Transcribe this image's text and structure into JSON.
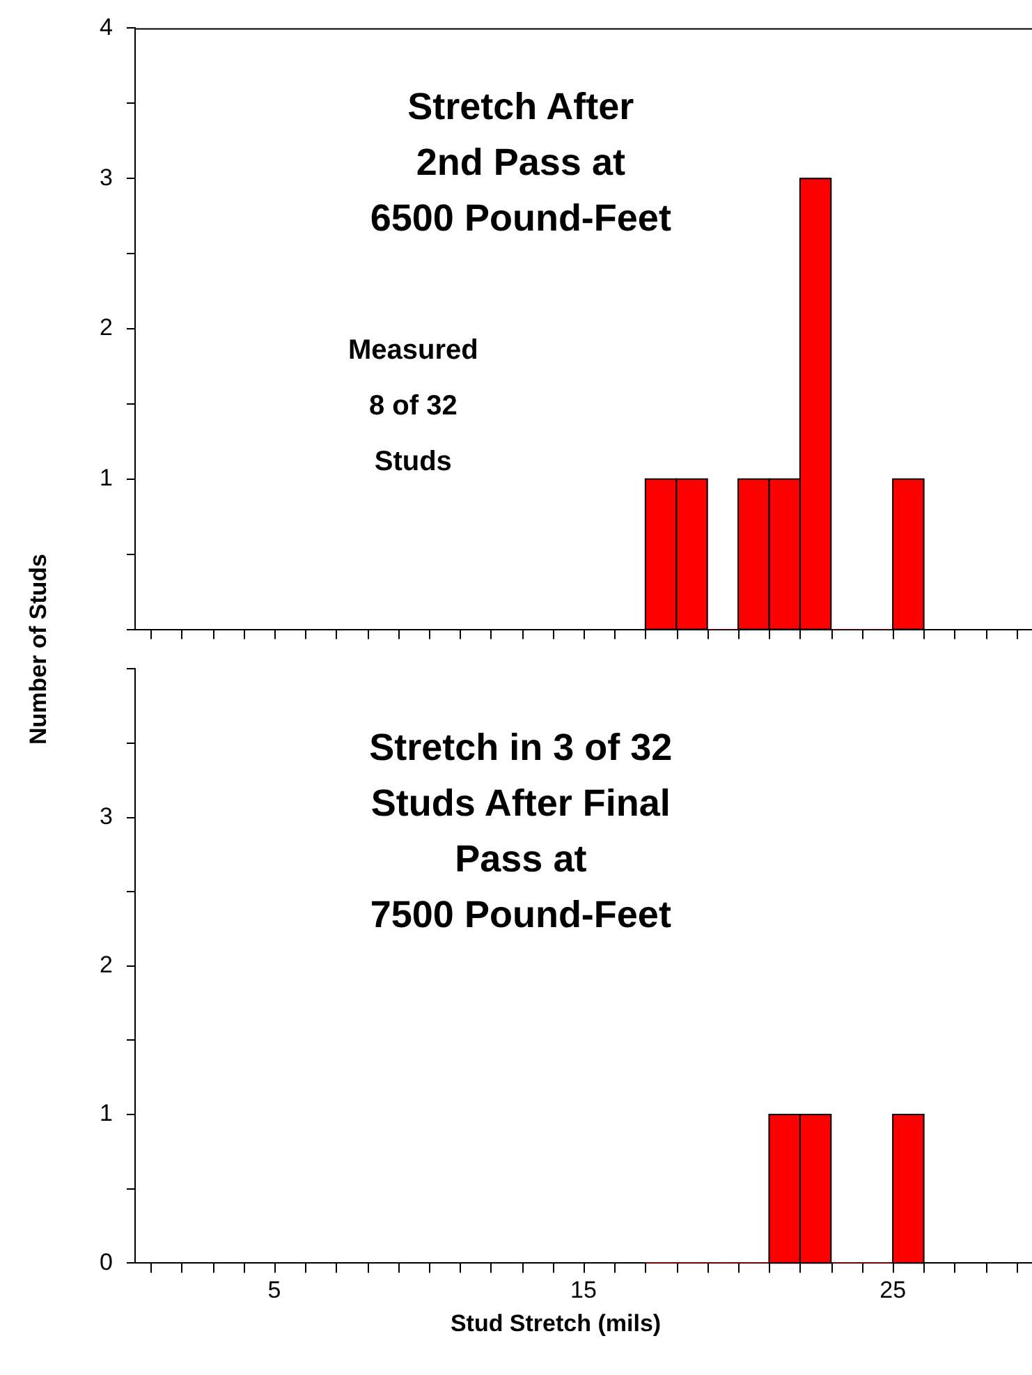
{
  "chart_data": [
    {
      "type": "histogram",
      "title": "Stretch After\n2nd Pass at\n6500 Pound-Feet",
      "ylabel": "Number of Studs",
      "annotations": [
        "Measured\n8 of 32\nStuds"
      ],
      "bins": [
        17,
        18,
        19,
        20,
        21,
        22,
        23,
        24,
        25,
        26
      ],
      "values": [
        1,
        1,
        0,
        1,
        1,
        3,
        0,
        0,
        1
      ],
      "color": "#ff0000",
      "xlim": [
        0.5,
        29.5
      ],
      "xticks": [
        {
          "value": 1,
          "label": null
        },
        {
          "value": 2,
          "label": null
        },
        {
          "value": 3,
          "label": null
        },
        {
          "value": 4,
          "label": null
        },
        5,
        {
          "value": 6,
          "label": null
        },
        {
          "value": 7,
          "label": null
        },
        {
          "value": 8,
          "label": null
        },
        {
          "value": 9,
          "label": null
        },
        {
          "value": 10,
          "label": null
        },
        {
          "value": 11,
          "label": null
        },
        {
          "value": 12,
          "label": null
        },
        {
          "value": 13,
          "label": null
        },
        {
          "value": 14,
          "label": null
        },
        15,
        {
          "value": 16,
          "label": null
        },
        {
          "value": 17,
          "label": null
        },
        {
          "value": 18,
          "label": null
        },
        {
          "value": 19,
          "label": null
        },
        {
          "value": 20,
          "label": null
        },
        {
          "value": 21,
          "label": null
        },
        {
          "value": 22,
          "label": null
        },
        {
          "value": 23,
          "label": null
        },
        {
          "value": 24,
          "label": null
        },
        25,
        {
          "value": 26,
          "label": null
        },
        {
          "value": 27,
          "label": null
        },
        {
          "value": 28,
          "label": null
        },
        {
          "value": 29,
          "label": null
        }
      ],
      "ylim": [
        0,
        4
      ],
      "yticks": [
        {
          "value": 0,
          "label": null
        },
        {
          "value": 0.5,
          "label": null
        },
        1,
        {
          "value": 1.5,
          "label": null
        },
        2,
        {
          "value": 2.5,
          "label": null
        },
        3,
        {
          "value": 3.5,
          "label": null
        },
        4
      ],
      "tick_labels": "y",
      "grid": false,
      "legend": false
    },
    {
      "type": "histogram",
      "title": "Stretch in 3 of 32\nStuds After Final\nPass at\n7500 Pound-Feet",
      "xlabel": "Stud Stretch (mils)",
      "bins": [
        17,
        18,
        19,
        20,
        21,
        22,
        23,
        24,
        25,
        26
      ],
      "values": [
        0,
        0,
        0,
        0,
        1,
        1,
        0,
        0,
        1
      ],
      "color": "#ff0000",
      "xlim": [
        0.5,
        29.5
      ],
      "xticks": [
        {
          "value": 1,
          "label": null
        },
        {
          "value": 2,
          "label": null
        },
        {
          "value": 3,
          "label": null
        },
        {
          "value": 4,
          "label": null
        },
        5,
        {
          "value": 6,
          "label": null
        },
        {
          "value": 7,
          "label": null
        },
        {
          "value": 8,
          "label": null
        },
        {
          "value": 9,
          "label": null
        },
        {
          "value": 10,
          "label": null
        },
        {
          "value": 11,
          "label": null
        },
        {
          "value": 12,
          "label": null
        },
        {
          "value": 13,
          "label": null
        },
        {
          "value": 14,
          "label": null
        },
        15,
        {
          "value": 16,
          "label": null
        },
        {
          "value": 17,
          "label": null
        },
        {
          "value": 18,
          "label": null
        },
        {
          "value": 19,
          "label": null
        },
        {
          "value": 20,
          "label": null
        },
        {
          "value": 21,
          "label": null
        },
        {
          "value": 22,
          "label": null
        },
        {
          "value": 23,
          "label": null
        },
        {
          "value": 24,
          "label": null
        },
        25,
        {
          "value": 26,
          "label": null
        },
        {
          "value": 27,
          "label": null
        },
        {
          "value": 28,
          "label": null
        },
        {
          "value": 29,
          "label": null
        }
      ],
      "ylim": [
        0,
        4
      ],
      "yticks": [
        0,
        {
          "value": 0.5,
          "label": null
        },
        1,
        {
          "value": 1.5,
          "label": null
        },
        2,
        {
          "value": 2.5,
          "label": null
        },
        3,
        {
          "value": 3.5,
          "label": null
        },
        {
          "value": 4,
          "label": null
        }
      ],
      "grid": false,
      "legend": false
    }
  ]
}
